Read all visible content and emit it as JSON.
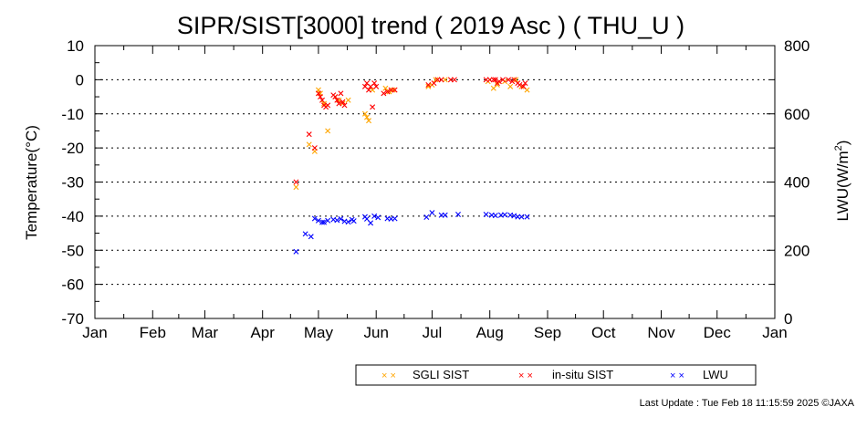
{
  "chart_data": {
    "type": "scatter",
    "title": "SIPR/SIST[3000] trend ( 2019 Asc ) ( THU_U )",
    "ylabel_left": "Temperature(°C)",
    "ylabel_right_prefix": "LWU(W/m",
    "ylabel_right_sup": "2",
    "ylabel_right_suffix": ")",
    "x_ticks": [
      "Jan",
      "Feb",
      "Mar",
      "Apr",
      "May",
      "Jun",
      "Jul",
      "Aug",
      "Sep",
      "Oct",
      "Nov",
      "Dec",
      "Jan"
    ],
    "ylim_left": [
      -70,
      10
    ],
    "ylim_right": [
      0,
      800
    ],
    "y_ticks_left": [
      "10",
      "0",
      "-10",
      "-20",
      "-30",
      "-40",
      "-50",
      "-60",
      "-70"
    ],
    "y_ticks_right": [
      "800",
      "600",
      "400",
      "200",
      "0"
    ],
    "grid": "horizontal dotted",
    "marker": "×",
    "colors": {
      "sgli": "#FFA500",
      "insitu": "#FF0000",
      "lwu": "#0000FF"
    },
    "legend": {
      "position": "bottom-center",
      "entries": [
        {
          "key": "sgli",
          "label": "SGLI SIST"
        },
        {
          "key": "insitu",
          "label": "in-situ SIST"
        },
        {
          "key": "lwu",
          "label": "LWU"
        }
      ]
    },
    "x_unit_note": "x values are day of year 2019",
    "series": [
      {
        "key": "sgli",
        "name": "SGLI SIST",
        "axis": "left",
        "points": [
          [
            108,
            -31.5
          ],
          [
            115,
            -19
          ],
          [
            118,
            -21
          ],
          [
            120,
            -3
          ],
          [
            121,
            -4
          ],
          [
            123,
            -7
          ],
          [
            125,
            -15
          ],
          [
            129,
            -5
          ],
          [
            131,
            -6
          ],
          [
            133,
            -7
          ],
          [
            136,
            -6
          ],
          [
            145,
            -10
          ],
          [
            146,
            -11
          ],
          [
            147,
            -12
          ],
          [
            149,
            -3
          ],
          [
            156,
            -2.5
          ],
          [
            158,
            -3.5
          ],
          [
            160,
            -3
          ],
          [
            179,
            -2
          ],
          [
            181,
            -1.5
          ],
          [
            183,
            0
          ],
          [
            188,
            0
          ],
          [
            211,
            -0.5
          ],
          [
            214,
            -2.5
          ],
          [
            216,
            -1.5
          ],
          [
            220,
            -0.5
          ],
          [
            223,
            -2
          ],
          [
            226,
            0
          ],
          [
            229,
            -2
          ],
          [
            232,
            -3
          ]
        ]
      },
      {
        "key": "insitu",
        "name": "in-situ SIST",
        "axis": "left",
        "points": [
          [
            108,
            -30
          ],
          [
            115,
            -16
          ],
          [
            118,
            -20
          ],
          [
            120,
            -4
          ],
          [
            121,
            -5
          ],
          [
            122,
            -6
          ],
          [
            123,
            -7.5
          ],
          [
            124,
            -8
          ],
          [
            125,
            -7.5
          ],
          [
            128,
            -4.5
          ],
          [
            129,
            -5
          ],
          [
            130,
            -6
          ],
          [
            131,
            -7
          ],
          [
            132,
            -4
          ],
          [
            133,
            -6.5
          ],
          [
            134,
            -7.5
          ],
          [
            145,
            -2
          ],
          [
            146,
            -1
          ],
          [
            147,
            -3
          ],
          [
            148,
            -2
          ],
          [
            149,
            -8
          ],
          [
            150,
            -1
          ],
          [
            151,
            -2
          ],
          [
            155,
            -4
          ],
          [
            157,
            -3.5
          ],
          [
            159,
            -3
          ],
          [
            161,
            -3
          ],
          [
            179,
            -1.5
          ],
          [
            182,
            -1
          ],
          [
            184,
            0
          ],
          [
            186,
            0
          ],
          [
            191,
            0
          ],
          [
            193,
            0
          ],
          [
            210,
            0
          ],
          [
            212,
            0
          ],
          [
            214,
            0
          ],
          [
            215,
            0
          ],
          [
            216,
            -1
          ],
          [
            217,
            -0.5
          ],
          [
            219,
            0
          ],
          [
            222,
            0
          ],
          [
            224,
            -0.5
          ],
          [
            225,
            0
          ],
          [
            227,
            -1
          ],
          [
            228,
            -1.5
          ],
          [
            230,
            -2
          ],
          [
            231,
            -1
          ]
        ]
      },
      {
        "key": "lwu",
        "name": "LWU",
        "axis": "right",
        "points": [
          [
            108,
            196
          ],
          [
            113,
            248
          ],
          [
            116,
            240
          ],
          [
            118,
            293
          ],
          [
            120,
            287
          ],
          [
            122,
            282
          ],
          [
            123,
            282
          ],
          [
            125,
            287
          ],
          [
            128,
            290
          ],
          [
            130,
            288
          ],
          [
            132,
            292
          ],
          [
            134,
            285
          ],
          [
            136,
            283
          ],
          [
            138,
            290
          ],
          [
            139,
            286
          ],
          [
            145,
            298
          ],
          [
            146,
            292
          ],
          [
            148,
            280
          ],
          [
            150,
            300
          ],
          [
            152,
            296
          ],
          [
            157,
            293
          ],
          [
            159,
            292
          ],
          [
            161,
            293
          ],
          [
            178,
            297
          ],
          [
            181,
            310
          ],
          [
            186,
            303
          ],
          [
            188,
            303
          ],
          [
            195,
            305
          ],
          [
            210,
            305
          ],
          [
            213,
            303
          ],
          [
            215,
            302
          ],
          [
            218,
            303
          ],
          [
            220,
            304
          ],
          [
            223,
            303
          ],
          [
            225,
            301
          ],
          [
            227,
            298
          ],
          [
            229,
            298
          ],
          [
            232,
            298
          ]
        ]
      }
    ]
  },
  "footer": "Last Update : Tue Feb 18 11:15:59 2025  ©JAXA"
}
